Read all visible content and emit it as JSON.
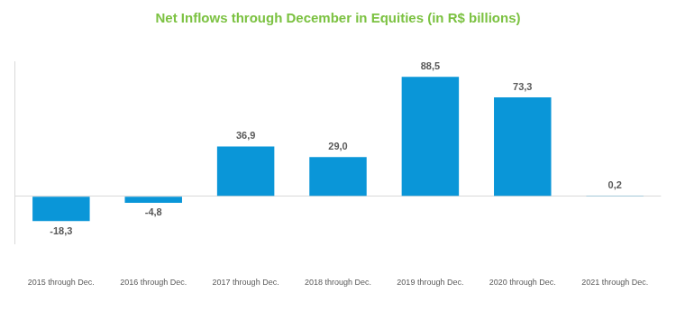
{
  "chart_data": {
    "type": "bar",
    "title": "Net Inflows through December in Equities (in R$ billions)",
    "categories": [
      "2015 through Dec.",
      "2016 through Dec.",
      "2017 through Dec.",
      "2018 through Dec.",
      "2019 through Dec.",
      "2020 through Dec.",
      "2021 through Dec."
    ],
    "values": [
      -18.3,
      -4.8,
      36.9,
      29.0,
      88.5,
      73.3,
      0.2
    ],
    "value_labels": [
      "-18,3",
      "-4,8",
      "36,9",
      "29,0",
      "88,5",
      "73,3",
      "0,2"
    ],
    "color": "#0a96d8",
    "ylim": [
      -35,
      100
    ],
    "yticks": [
      0
    ],
    "grid": true,
    "data_labels": true,
    "tick_labels": "x"
  }
}
